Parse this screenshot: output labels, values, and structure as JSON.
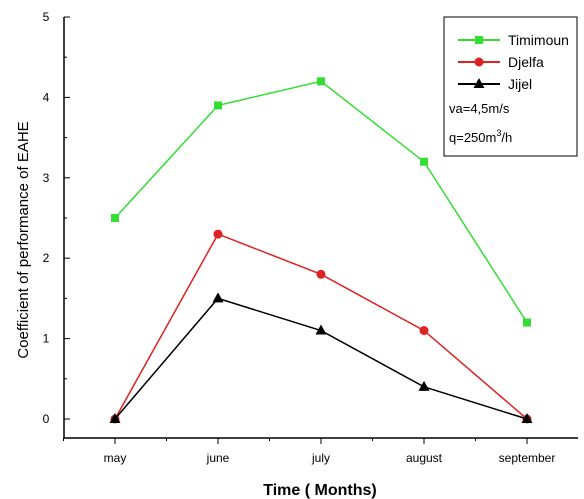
{
  "chart_data": {
    "type": "line",
    "categories": [
      "may",
      "june",
      "july",
      "august",
      "september"
    ],
    "xlabel": "Time ( Months)",
    "ylabel": "Coefficient of performance of EAHE",
    "ylim": [
      0,
      5
    ],
    "yticks": [
      "0",
      "1",
      "2",
      "3",
      "4",
      "5"
    ],
    "grid": false,
    "legend_position": "top-right",
    "series": [
      {
        "name": "Timimoun",
        "color": "#33dd33",
        "marker": "square",
        "values": [
          2.5,
          3.9,
          4.2,
          3.2,
          1.2
        ]
      },
      {
        "name": "Djelfa",
        "color": "#dd2222",
        "marker": "circle",
        "values": [
          0.0,
          2.3,
          1.8,
          1.1,
          0.0
        ]
      },
      {
        "name": "Jijel",
        "color": "#000000",
        "marker": "triangle",
        "values": [
          0.0,
          1.5,
          1.1,
          0.4,
          0.0
        ]
      }
    ],
    "annotations": {
      "va": {
        "text": "va=4,5m/s"
      },
      "q": {
        "prefix": "q=250m",
        "sup": "3",
        "suffix": "/h"
      }
    }
  }
}
